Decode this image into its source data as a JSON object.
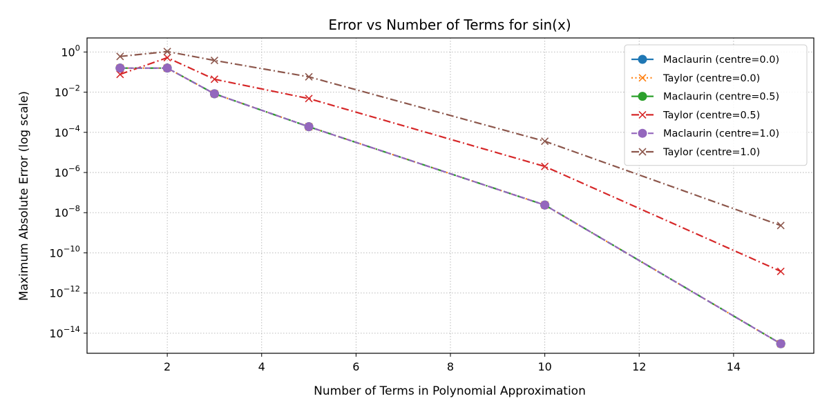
{
  "chart_data": {
    "type": "line",
    "title": "Error vs Number of Terms for sin(x)",
    "xlabel": "Number of Terms in Polynomial Approximation",
    "ylabel": "Maximum Absolute Error (log scale)",
    "yscale": "log",
    "xlim": [
      0.3,
      15.7
    ],
    "ylim": [
      1e-15,
      5
    ],
    "x_ticks": [
      2,
      4,
      6,
      8,
      10,
      12,
      14
    ],
    "y_ticks": [
      0,
      -2,
      -4,
      -6,
      -8,
      -10,
      -12,
      -14
    ],
    "grid": true,
    "legend_position": "top-right",
    "x": [
      1,
      2,
      3,
      5,
      10,
      15
    ],
    "series": [
      {
        "name": "Maclaurin (centre=0.0)",
        "color": "#1f77b4",
        "marker": "circle",
        "dash": "dashdot",
        "values": [
          0.158,
          0.158,
          0.0083,
          0.00019,
          2.4e-08,
          3e-15
        ]
      },
      {
        "name": "Taylor (centre=0.0)",
        "color": "#ff7f0e",
        "marker": "x",
        "dash": "dotted",
        "values": [
          0.158,
          0.158,
          0.0083,
          0.00019,
          2.4e-08,
          3e-15
        ]
      },
      {
        "name": "Maclaurin (centre=0.5)",
        "color": "#2ca02c",
        "marker": "circle",
        "dash": "dashdot",
        "values": [
          0.158,
          0.158,
          0.0083,
          0.00019,
          2.4e-08,
          3e-15
        ]
      },
      {
        "name": "Taylor (centre=0.5)",
        "color": "#d62728",
        "marker": "x",
        "dash": "dashdot",
        "values": [
          0.077,
          0.52,
          0.044,
          0.0048,
          2e-06,
          1.2e-11
        ]
      },
      {
        "name": "Maclaurin (centre=1.0)",
        "color": "#9467bd",
        "marker": "circle",
        "dash": "dashed",
        "values": [
          0.158,
          0.158,
          0.0083,
          0.00019,
          2.4e-08,
          3e-15
        ]
      },
      {
        "name": "Taylor (centre=1.0)",
        "color": "#8c564b",
        "marker": "x",
        "dash": "dashdot",
        "values": [
          0.6,
          1.05,
          0.38,
          0.058,
          3.6e-05,
          2.3e-09
        ]
      }
    ]
  }
}
